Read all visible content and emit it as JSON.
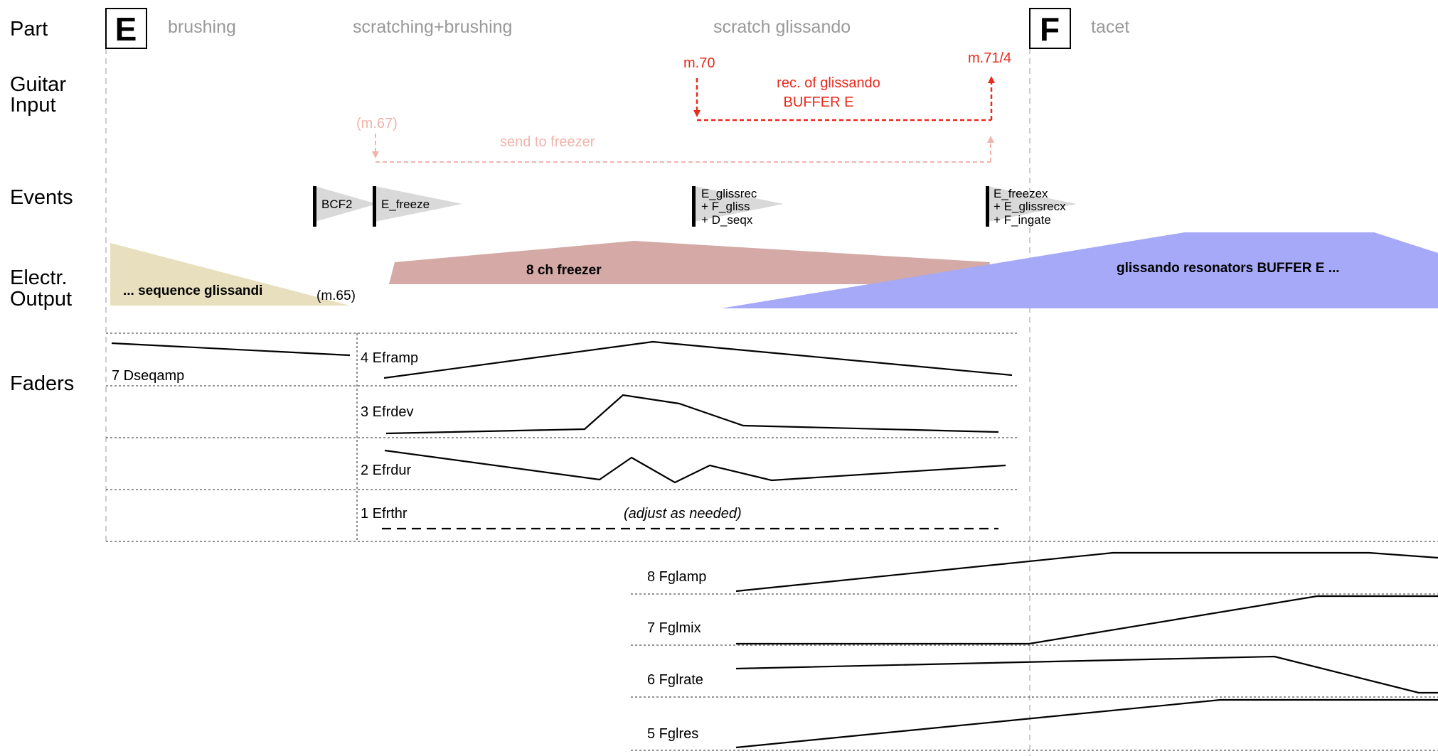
{
  "rows": {
    "part": "Part",
    "guitar_line1": "Guitar",
    "guitar_line2": "Input",
    "events": "Events",
    "output_line1": "Electr.",
    "output_line2": "Output",
    "faders": "Faders"
  },
  "sections": {
    "e_letter": "E",
    "f_letter": "F",
    "brushing": "brushing",
    "scratching": "scratching+brushing",
    "scratch_gliss": "scratch glissando",
    "tacet": "tacet"
  },
  "guitar_input": {
    "m70": "m.70",
    "m71": "m.71/4",
    "rec_line1": "rec. of  glissando",
    "rec_line2": "BUFFER E",
    "m67": "(m.67)",
    "send_freezer": "send to freezer"
  },
  "events": {
    "bcf2": "BCF2",
    "e_freeze": "E_freeze",
    "gliss_1": "E_glissrec",
    "gliss_2": "+ F_gliss",
    "gliss_3": "+ D_seqx",
    "freezex_1": "E_freezex",
    "freezex_2": "+ E_glissrecx",
    "freezex_3": "+ F_ingate"
  },
  "output": {
    "sequence": "... sequence glissandi",
    "m65": "(m.65)",
    "freezer": "8 ch  freezer",
    "resonators": "glissando resonators   BUFFER E ..."
  },
  "faders": {
    "dseqamp": "7 Dseqamp",
    "eframp": "4 Eframp",
    "efrdev": "3 Efrdev",
    "efrdur": "2 Efrdur",
    "efrthr": "1 Efrthr",
    "adjust": "(adjust as needed)",
    "fglamp": "8 Fglamp",
    "fglmix": "7 Fglmix",
    "fglrate": "6 Fglrate",
    "fglres": "5 Fglres"
  },
  "colors": {
    "red": "#e8291c",
    "pink": "#f0b4ad",
    "sequence_fill": "#e8dfbe",
    "freezer_fill": "#d4a9a6",
    "resonator_fill": "#a6a9f7",
    "event_wedge": "#d9d9d9",
    "section_grey": "#999999"
  }
}
